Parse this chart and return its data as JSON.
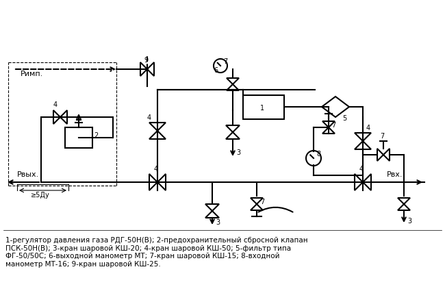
{
  "bg_color": "#ffffff",
  "line_color": "#000000",
  "dashed_color": "#000000",
  "caption": "1-регулятор давления газа РДГ-50Н(В); 2-предохранительный сбросной клапан\nПСК-50Н(В); 3-кран шаровой КШ-20; 4-кран шаровой КШ-50; 5-фильтр типа\nФГ-50/50С; 6-выходной манометр МТ; 7-кран шаровой КШ-15; 8-входной\nманометр МТ-16; 9-кран шаровой КШ-25.",
  "label_rvyh": "Рвых.",
  "label_rvh": "Рвх.",
  "label_5dy": "≥5Ду",
  "label_rimp": "Римп."
}
